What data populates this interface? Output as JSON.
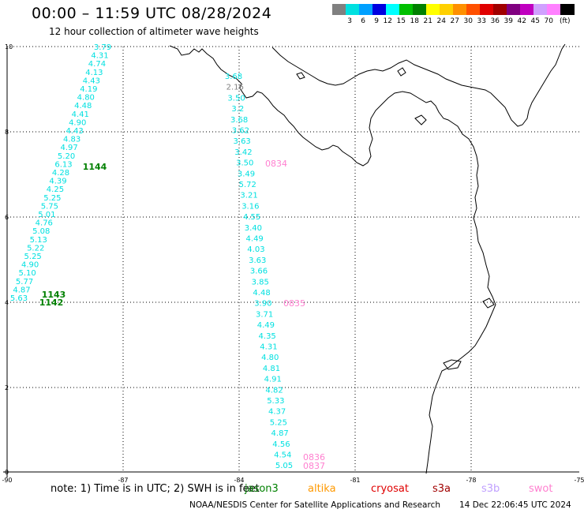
{
  "title": "00:00 – 11:59 UTC 08/28/2024",
  "subtitle": "12 hour collection of altimeter wave heights",
  "scale": {
    "colors": [
      "#808080",
      "#00e0e0",
      "#00a0ff",
      "#0000e0",
      "#00ffff",
      "#00c000",
      "#008000",
      "#ffff00",
      "#ffd000",
      "#ff9000",
      "#ff5000",
      "#e00000",
      "#a00000",
      "#800080",
      "#c000c0",
      "#d0a0ff",
      "#ff80ff",
      "#000000"
    ],
    "labels": [
      "3",
      "6",
      "9",
      "12",
      "15",
      "18",
      "21",
      "24",
      "27",
      "30",
      "33",
      "36",
      "39",
      "42",
      "45",
      "70"
    ],
    "unit": "(ft)"
  },
  "axes": {
    "lon_ticks": [
      "-90",
      "-87",
      "-84",
      "-81",
      "-78",
      "-75"
    ],
    "lat_ticks": [
      "0",
      "2",
      "4",
      "6",
      "8",
      "10"
    ]
  },
  "tracks": [
    {
      "name": "track-1",
      "color": "#00e0e0",
      "labels": [
        "3.79",
        "4.31",
        "4.74",
        "4.13",
        "4.43",
        "4.19",
        "4.80",
        "4.48",
        "4.41",
        "4.90",
        "4.43",
        "4.83",
        "4.97",
        "5.20",
        "6.13",
        "4.28",
        "4.39",
        "4.25",
        "5.25",
        "5.75",
        "5.01",
        "4.76",
        "5.08",
        "5.13",
        "5.22",
        "5.25",
        "4.90",
        "5.10",
        "5.77",
        "4.87",
        "5.63"
      ]
    },
    {
      "name": "track-2",
      "color": "#00e0e0",
      "labels": [
        "3.68",
        "2.16",
        "3.50",
        "3.2",
        "3.68",
        "3.62",
        "3.63",
        "3.42",
        "3.50",
        "3.49",
        "5.72",
        "3.21",
        "3.16",
        "4.55",
        "3.40",
        "4.49",
        "4.03",
        "3.63",
        "3.66",
        "3.85",
        "4.48",
        "3.90",
        "3.71",
        "4.49",
        "4.35",
        "4.31",
        "4.80",
        "4.81",
        "4.91",
        "4.82",
        "5.33",
        "4.37",
        "5.25",
        "4.87",
        "4.56",
        "4.54",
        "5.05"
      ]
    }
  ],
  "time_labels": {
    "jason": [
      "1144",
      "1143",
      "1142"
    ],
    "swot": [
      "0834",
      "0835",
      "0836",
      "0837"
    ]
  },
  "note": "note: 1) Time is in UTC; 2) SWH is in feet",
  "satellites": [
    {
      "name": "jason3",
      "color": "#008000"
    },
    {
      "name": "altika",
      "color": "#ff9900"
    },
    {
      "name": "cryosat",
      "color": "#e00000"
    },
    {
      "name": "s3a",
      "color": "#a00000"
    },
    {
      "name": "s3b",
      "color": "#c0a0ff"
    },
    {
      "name": "swot",
      "color": "#ff80d0"
    }
  ],
  "credit": "NOAA/NESDIS Center for Satellite Applications and Research",
  "credit_date": "14 Dec 22:06:45 UTC 2024"
}
